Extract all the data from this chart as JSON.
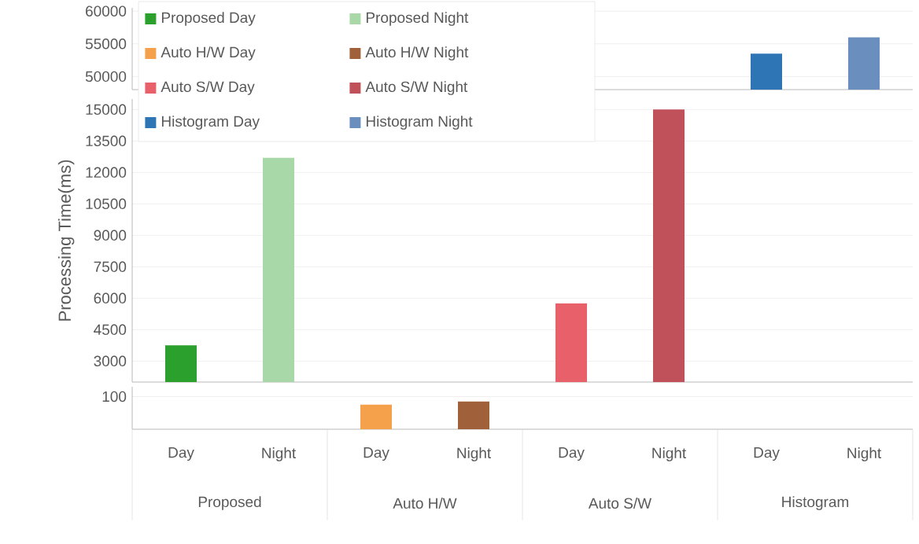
{
  "chart_data": [
    {
      "type": "bar",
      "ylim": [
        48000,
        60500
      ],
      "yticks": [
        50000,
        55000,
        60000
      ],
      "grid": "y",
      "tick_labels": "y",
      "series": [
        {
          "color": "#2e75b6",
          "values": [
            null,
            null,
            null,
            null,
            null,
            null,
            53500,
            null
          ]
        },
        {
          "color": "#6a8fbf",
          "values": [
            null,
            null,
            null,
            null,
            null,
            null,
            null,
            56000
          ]
        }
      ]
    },
    {
      "type": "bar",
      "ylabel": "Processing Time(ms)",
      "ylim": [
        2000,
        15500
      ],
      "yticks": [
        3000,
        4500,
        6000,
        7500,
        9000,
        10500,
        12000,
        13500,
        15000
      ],
      "grid": "y",
      "tick_labels": "y",
      "legend": "top left",
      "series": [
        {
          "name": "Proposed Day",
          "color": "#2ca02c",
          "values": [
            3750,
            null,
            null,
            null,
            null,
            null,
            null,
            null
          ]
        },
        {
          "name": "Proposed Night",
          "color": "#a8d8a8",
          "values": [
            null,
            12700,
            null,
            null,
            null,
            null,
            null,
            null
          ]
        },
        {
          "name": "Auto H/W Day",
          "color": "#f5a04a",
          "values": [
            null,
            null,
            null,
            null,
            null,
            null,
            null,
            null
          ]
        },
        {
          "name": "Auto H/W Night",
          "color": "#a0603a",
          "values": [
            null,
            null,
            null,
            null,
            null,
            null,
            null,
            null
          ]
        },
        {
          "name": "Auto S/W Day",
          "color": "#e8606a",
          "values": [
            null,
            null,
            null,
            null,
            5750,
            null,
            null,
            null
          ]
        },
        {
          "name": "Auto S/W Night",
          "color": "#c0505a",
          "values": [
            null,
            null,
            null,
            null,
            null,
            15000,
            null,
            null
          ]
        },
        {
          "name": "Histogram Day",
          "color": "#2e75b6",
          "values": [
            null,
            null,
            null,
            null,
            null,
            null,
            null,
            null
          ]
        },
        {
          "name": "Histogram Night",
          "color": "#6a8fbf",
          "values": [
            null,
            null,
            null,
            null,
            null,
            null,
            null,
            null
          ]
        }
      ]
    },
    {
      "type": "bar",
      "categories": [
        "Day",
        "Night",
        "Day",
        "Night",
        "Day",
        "Night",
        "Day",
        "Night"
      ],
      "annotations": [
        "Proposed",
        "Auto H/W",
        "Auto S/W",
        "Histogram"
      ],
      "ylim": [
        0,
        130
      ],
      "yticks": [
        100
      ],
      "grid": "y",
      "series": [
        {
          "color": "#f5a04a",
          "values": [
            null,
            null,
            75,
            null,
            null,
            null,
            null,
            null
          ]
        },
        {
          "color": "#a0603a",
          "values": [
            null,
            null,
            null,
            85,
            null,
            null,
            null,
            null
          ]
        }
      ]
    }
  ]
}
